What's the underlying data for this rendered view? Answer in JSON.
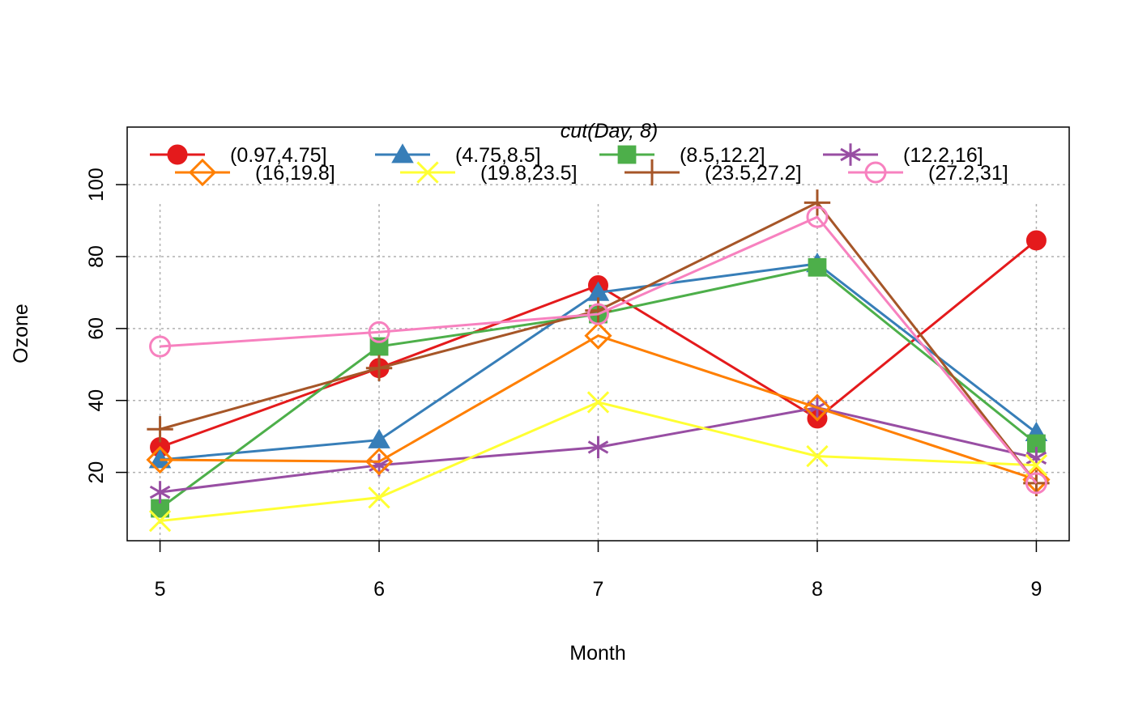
{
  "chart_data": {
    "type": "line",
    "title": "",
    "xlabel": "Month",
    "ylabel": "Ozone",
    "x": [
      5,
      6,
      7,
      8,
      9
    ],
    "xlim": [
      4.85,
      9.15
    ],
    "ylim": [
      1,
      116
    ],
    "xticks": [
      5,
      6,
      7,
      8,
      9
    ],
    "yticks": [
      20,
      40,
      60,
      80,
      100
    ],
    "grid": true,
    "legend": {
      "title": "cut(Day, 8)",
      "placement": "top",
      "columns": 4
    },
    "series": [
      {
        "name": "(0.97,4.75]",
        "color": "#e41a1c",
        "marker": "filled-circle",
        "values": [
          27,
          49,
          72,
          35,
          84.5
        ]
      },
      {
        "name": "(4.75,8.5]",
        "color": "#377eb8",
        "marker": "filled-triangle",
        "values": [
          23.5,
          29,
          70,
          78,
          31
        ]
      },
      {
        "name": "(8.5,12.2]",
        "color": "#4daf4a",
        "marker": "filled-square",
        "values": [
          10,
          55,
          64,
          77,
          28
        ]
      },
      {
        "name": "(12.2,16]",
        "color": "#984ea3",
        "marker": "asterisk",
        "values": [
          14.5,
          22,
          27,
          38,
          24
        ]
      },
      {
        "name": "(16,19.8]",
        "color": "#ff7f00",
        "marker": "open-diamond",
        "values": [
          23.5,
          23,
          58,
          38,
          18
        ]
      },
      {
        "name": "(19.8,23.5]",
        "color": "#ffff33",
        "marker": "cross-x",
        "values": [
          6.5,
          13,
          39.5,
          24.5,
          22
        ]
      },
      {
        "name": "(23.5,27.2]",
        "color": "#a65628",
        "marker": "plus",
        "values": [
          32,
          49,
          65,
          95,
          17
        ]
      },
      {
        "name": "(27.2,31]",
        "color": "#f781bf",
        "marker": "open-circle",
        "values": [
          55,
          59,
          64,
          91,
          17
        ]
      }
    ]
  }
}
